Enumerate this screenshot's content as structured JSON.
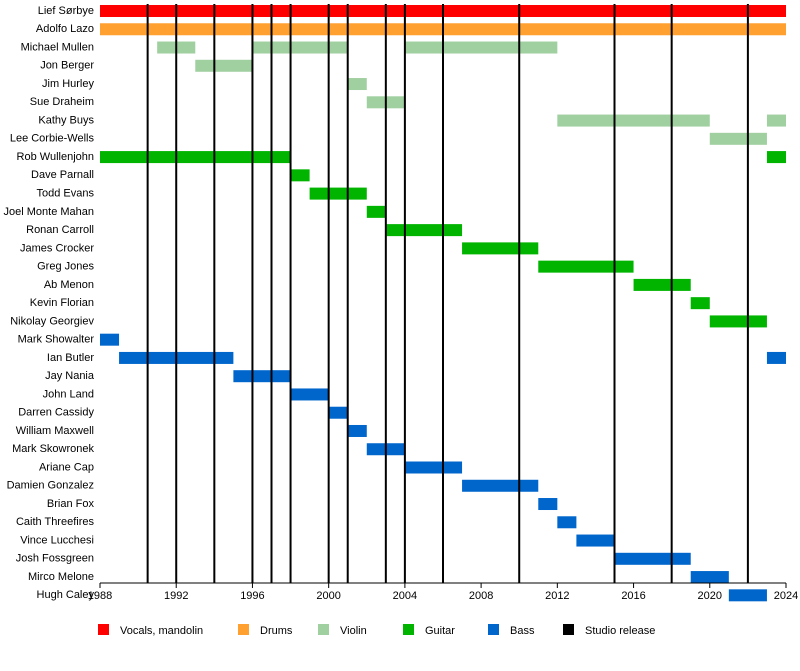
{
  "chart_data": {
    "type": "timeline",
    "xlim": [
      1988,
      2024
    ],
    "xticks": [
      1988,
      1992,
      1996,
      2000,
      2004,
      2008,
      2012,
      2016,
      2020,
      2024
    ],
    "members": [
      {
        "name": "Lief Sørbye",
        "color": "#ff0000",
        "spans": [
          [
            1988,
            2024
          ]
        ]
      },
      {
        "name": "Adolfo Lazo",
        "color": "#ffa030",
        "spans": [
          [
            1988,
            2024
          ]
        ]
      },
      {
        "name": "Michael Mullen",
        "color": "#a0cfa0",
        "spans": [
          [
            1991,
            1993
          ],
          [
            1996,
            2001
          ],
          [
            2004,
            2012
          ]
        ]
      },
      {
        "name": "Jon Berger",
        "color": "#a0cfa0",
        "spans": [
          [
            1993,
            1996
          ]
        ]
      },
      {
        "name": "Jim Hurley",
        "color": "#a0cfa0",
        "spans": [
          [
            2001,
            2002
          ]
        ]
      },
      {
        "name": "Sue Draheim",
        "color": "#a0cfa0",
        "spans": [
          [
            2002,
            2004
          ]
        ]
      },
      {
        "name": "Kathy Buys",
        "color": "#a0cfa0",
        "spans": [
          [
            2012,
            2020
          ],
          [
            2023,
            2024
          ]
        ]
      },
      {
        "name": "Lee Corbie-Wells",
        "color": "#a0cfa0",
        "spans": [
          [
            2020,
            2023
          ]
        ]
      },
      {
        "name": "Rob Wullenjohn",
        "color": "#00b400",
        "spans": [
          [
            1988,
            1998
          ],
          [
            2023,
            2024
          ]
        ]
      },
      {
        "name": "Dave Parnall",
        "color": "#00b400",
        "spans": [
          [
            1998,
            1999
          ]
        ]
      },
      {
        "name": "Todd Evans",
        "color": "#00b400",
        "spans": [
          [
            1999,
            2002
          ]
        ]
      },
      {
        "name": "Joel Monte Mahan",
        "color": "#00b400",
        "spans": [
          [
            2002,
            2003
          ]
        ]
      },
      {
        "name": "Ronan Carroll",
        "color": "#00b400",
        "spans": [
          [
            2003,
            2007
          ]
        ]
      },
      {
        "name": "James Crocker",
        "color": "#00b400",
        "spans": [
          [
            2007,
            2011
          ]
        ]
      },
      {
        "name": "Greg Jones",
        "color": "#00b400",
        "spans": [
          [
            2011,
            2016
          ]
        ]
      },
      {
        "name": "Ab Menon",
        "color": "#00b400",
        "spans": [
          [
            2016,
            2019
          ]
        ]
      },
      {
        "name": "Kevin Florian",
        "color": "#00b400",
        "spans": [
          [
            2019,
            2020
          ]
        ]
      },
      {
        "name": "Nikolay Georgiev",
        "color": "#00b400",
        "spans": [
          [
            2020,
            2023
          ]
        ]
      },
      {
        "name": "Mark Showalter",
        "color": "#0066cc",
        "spans": [
          [
            1988,
            1989
          ]
        ]
      },
      {
        "name": "Ian Butler",
        "color": "#0066cc",
        "spans": [
          [
            1989,
            1995
          ],
          [
            2023,
            2024
          ]
        ]
      },
      {
        "name": "Jay Nania",
        "color": "#0066cc",
        "spans": [
          [
            1995,
            1998
          ]
        ]
      },
      {
        "name": "John Land",
        "color": "#0066cc",
        "spans": [
          [
            1998,
            2000
          ]
        ]
      },
      {
        "name": "Darren Cassidy",
        "color": "#0066cc",
        "spans": [
          [
            2000,
            2001
          ]
        ]
      },
      {
        "name": "William Maxwell",
        "color": "#0066cc",
        "spans": [
          [
            2001,
            2002
          ]
        ]
      },
      {
        "name": "Mark Skowronek",
        "color": "#0066cc",
        "spans": [
          [
            2002,
            2004
          ]
        ]
      },
      {
        "name": "Ariane Cap",
        "color": "#0066cc",
        "spans": [
          [
            2004,
            2007
          ]
        ]
      },
      {
        "name": "Damien Gonzalez",
        "color": "#0066cc",
        "spans": [
          [
            2007,
            2011
          ]
        ]
      },
      {
        "name": "Brian Fox",
        "color": "#0066cc",
        "spans": [
          [
            2011,
            2012
          ]
        ]
      },
      {
        "name": "Caith Threefires",
        "color": "#0066cc",
        "spans": [
          [
            2012,
            2013
          ]
        ]
      },
      {
        "name": "Vince Lucchesi",
        "color": "#0066cc",
        "spans": [
          [
            2013,
            2015
          ]
        ]
      },
      {
        "name": "Josh Fossgreen",
        "color": "#0066cc",
        "spans": [
          [
            2015,
            2019
          ]
        ]
      },
      {
        "name": "Mirco Melone",
        "color": "#0066cc",
        "spans": [
          [
            2019,
            2021
          ]
        ]
      },
      {
        "name": "Hugh Caley",
        "color": "#0066cc",
        "spans": [
          [
            2021,
            2023
          ]
        ]
      }
    ],
    "releases": [
      1990.5,
      1992,
      1994,
      1996,
      1997,
      1998,
      2000,
      2001,
      2003,
      2004,
      2006,
      2010,
      2015,
      2018,
      2022
    ],
    "release_color": "#000000",
    "legend": [
      {
        "name": "Vocals, mandolin",
        "color": "#ff0000"
      },
      {
        "name": "Drums",
        "color": "#ffa030"
      },
      {
        "name": "Violin",
        "color": "#a0cfa0"
      },
      {
        "name": "Guitar",
        "color": "#00b400"
      },
      {
        "name": "Bass",
        "color": "#0066cc"
      },
      {
        "name": "Studio release",
        "color": "#000000"
      }
    ]
  }
}
